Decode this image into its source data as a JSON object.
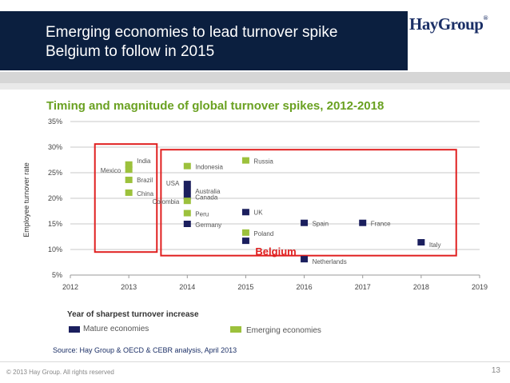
{
  "header": {
    "title_line1": "Emerging economies to lead turnover spike",
    "title_line2": "Belgium to follow in 2015",
    "logo_text": "HayGroup",
    "logo_mark": "®"
  },
  "colors": {
    "title_bg": "#0b1f3f",
    "mature": "#1b1f5e",
    "emerging": "#9cc13c",
    "chart_title": "#6aa121",
    "highlight": "#e02020"
  },
  "chart_data": {
    "type": "scatter",
    "title": "Timing and magnitude of global turnover spikes, 2012-2018",
    "xlabel": "Year of sharpest turnover increase",
    "ylabel": "Employee turnover rate",
    "xlim": [
      2012,
      2019
    ],
    "ylim": [
      5,
      35
    ],
    "x_ticks": [
      "2012",
      "2013",
      "2014",
      "2015",
      "2016",
      "2017",
      "2018",
      "2019"
    ],
    "y_ticks": [
      "5%",
      "10%",
      "15%",
      "20%",
      "25%",
      "30%",
      "35%"
    ],
    "grid": true,
    "series": [
      {
        "name": "Mature economies",
        "color": "#1b1f5e",
        "points": [
          {
            "label": "USA",
            "x": 2014,
            "y": 22.8
          },
          {
            "label": "Australia",
            "x": 2014,
            "y": 21.6
          },
          {
            "label": "Canada",
            "x": 2014,
            "y": 20.4
          },
          {
            "label": "UK",
            "x": 2015,
            "y": 17.3
          },
          {
            "label": "Germany",
            "x": 2014,
            "y": 15.0
          },
          {
            "label": "Spain",
            "x": 2016,
            "y": 15.2
          },
          {
            "label": "France",
            "x": 2017,
            "y": 15.2
          },
          {
            "label": "Belgium",
            "x": 2015,
            "y": 11.7
          },
          {
            "label": "Netherlands",
            "x": 2016,
            "y": 8.1
          },
          {
            "label": "Italy",
            "x": 2018,
            "y": 11.4
          }
        ]
      },
      {
        "name": "Emerging economies",
        "color": "#9cc13c",
        "points": [
          {
            "label": "India",
            "x": 2013,
            "y": 26.6
          },
          {
            "label": "Mexico",
            "x": 2013,
            "y": 25.6
          },
          {
            "label": "Brazil",
            "x": 2013,
            "y": 23.6
          },
          {
            "label": "China",
            "x": 2013,
            "y": 21.1
          },
          {
            "label": "Indonesia",
            "x": 2014,
            "y": 26.3
          },
          {
            "label": "Colombia",
            "x": 2014,
            "y": 19.5
          },
          {
            "label": "Peru",
            "x": 2014,
            "y": 17.1
          },
          {
            "label": "Russia",
            "x": 2015,
            "y": 27.4
          },
          {
            "label": "Poland",
            "x": 2015,
            "y": 13.3
          }
        ]
      }
    ],
    "annotations": [
      {
        "text": "Belgium",
        "x": 2015,
        "y": 9.5
      }
    ]
  },
  "legend": {
    "mature_label": "Mature economies",
    "emerging_label": "Emerging economies"
  },
  "footer": {
    "source": "Source: Hay Group & OECD & CEBR analysis, April 2013",
    "copyright": "© 2013 Hay Group. All rights reserved",
    "page_number": "13"
  }
}
